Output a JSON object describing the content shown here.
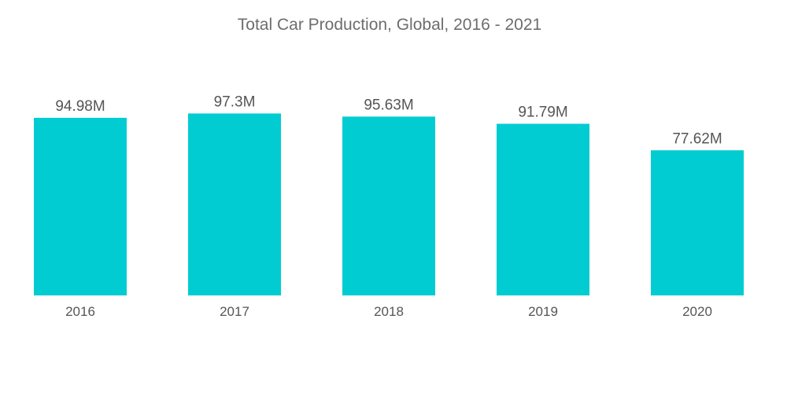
{
  "chart_data": {
    "type": "bar",
    "title": "Total Car Production, Global, 2016 - 2021",
    "xlabel": "",
    "ylabel": "",
    "categories": [
      "2016",
      "2017",
      "2018",
      "2019",
      "2020"
    ],
    "values": [
      94.98,
      97.3,
      95.63,
      91.79,
      77.62
    ],
    "value_labels": [
      "94.98M",
      "97.3M",
      "95.63M",
      "91.79M",
      "77.62M"
    ],
    "unit": "M",
    "ylim": [
      0,
      100
    ],
    "grid": false,
    "legend": "none",
    "colors": {
      "bar": "#00ccd1",
      "text": "#555555",
      "title": "#6d6d6d"
    }
  }
}
